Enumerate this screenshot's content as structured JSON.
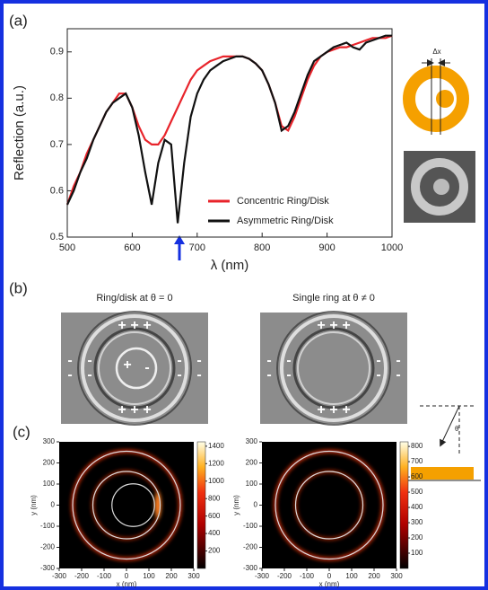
{
  "panel_labels": [
    "(a)",
    "(b)",
    "(c)"
  ],
  "schematic": {
    "dx_label": "Δx",
    "theta_label": "θ"
  },
  "charge_maps": [
    {
      "title": "Ring/disk at θ = 0",
      "plus": "+",
      "minus": "-"
    },
    {
      "title": "Single ring at θ ≠ 0",
      "plus": "+",
      "minus": "-"
    }
  ],
  "chart_data": [
    {
      "type": "line",
      "xlabel": "λ (nm)",
      "ylabel": "Reflection (a.u.)",
      "x": [
        500,
        510,
        520,
        530,
        540,
        550,
        560,
        570,
        580,
        590,
        600,
        610,
        620,
        630,
        640,
        650,
        660,
        670,
        680,
        690,
        700,
        710,
        720,
        730,
        740,
        750,
        760,
        770,
        780,
        790,
        800,
        810,
        820,
        830,
        840,
        850,
        860,
        870,
        880,
        890,
        900,
        910,
        920,
        930,
        940,
        950,
        960,
        970,
        980,
        990,
        1000
      ],
      "series": [
        {
          "name": "Concentric Ring/Disk",
          "color": "#e8242b",
          "values": [
            0.57,
            0.61,
            0.64,
            0.68,
            0.71,
            0.74,
            0.77,
            0.79,
            0.81,
            0.81,
            0.78,
            0.74,
            0.71,
            0.7,
            0.7,
            0.72,
            0.75,
            0.78,
            0.81,
            0.84,
            0.86,
            0.87,
            0.88,
            0.885,
            0.89,
            0.89,
            0.89,
            0.89,
            0.885,
            0.875,
            0.86,
            0.83,
            0.79,
            0.74,
            0.73,
            0.76,
            0.8,
            0.84,
            0.87,
            0.89,
            0.9,
            0.905,
            0.91,
            0.91,
            0.915,
            0.92,
            0.925,
            0.93,
            0.93,
            0.93,
            0.935
          ]
        },
        {
          "name": "Asymmetric Ring/Disk",
          "color": "#111111",
          "values": [
            0.57,
            0.6,
            0.64,
            0.67,
            0.71,
            0.74,
            0.77,
            0.79,
            0.8,
            0.81,
            0.78,
            0.72,
            0.64,
            0.57,
            0.66,
            0.71,
            0.7,
            0.53,
            0.66,
            0.76,
            0.81,
            0.84,
            0.86,
            0.87,
            0.88,
            0.885,
            0.89,
            0.89,
            0.885,
            0.875,
            0.86,
            0.83,
            0.79,
            0.73,
            0.74,
            0.77,
            0.81,
            0.85,
            0.88,
            0.89,
            0.9,
            0.91,
            0.915,
            0.92,
            0.91,
            0.905,
            0.92,
            0.925,
            0.93,
            0.935,
            0.935
          ]
        }
      ],
      "xlim": [
        500,
        1000
      ],
      "ylim": [
        0.5,
        0.95
      ],
      "xticks": [
        500,
        600,
        700,
        800,
        900,
        1000
      ],
      "yticks": [
        0.5,
        0.6,
        0.7,
        0.8,
        0.9
      ],
      "legend": "lower right"
    },
    {
      "type": "heatmap",
      "xlabel": "x (nm)",
      "ylabel": "y (nm)",
      "xlim": [
        -300,
        300
      ],
      "ylim": [
        -300,
        300
      ],
      "xticks": [
        -300,
        -200,
        -100,
        0,
        100,
        200,
        300
      ],
      "yticks": [
        -300,
        -200,
        -100,
        0,
        100,
        200,
        300
      ],
      "clim": [
        0,
        1450
      ],
      "cticks": [
        200,
        400,
        600,
        800,
        1000,
        1200,
        1400
      ]
    },
    {
      "type": "heatmap",
      "xlabel": "x (nm)",
      "ylabel": "y (nm)",
      "xlim": [
        -300,
        300
      ],
      "ylim": [
        -300,
        300
      ],
      "xticks": [
        -300,
        -200,
        -100,
        0,
        100,
        200,
        300
      ],
      "yticks": [
        -300,
        -200,
        -100,
        0,
        100,
        200,
        300
      ],
      "clim": [
        0,
        830
      ],
      "cticks": [
        100,
        200,
        300,
        400,
        500,
        600,
        700,
        800
      ]
    }
  ]
}
